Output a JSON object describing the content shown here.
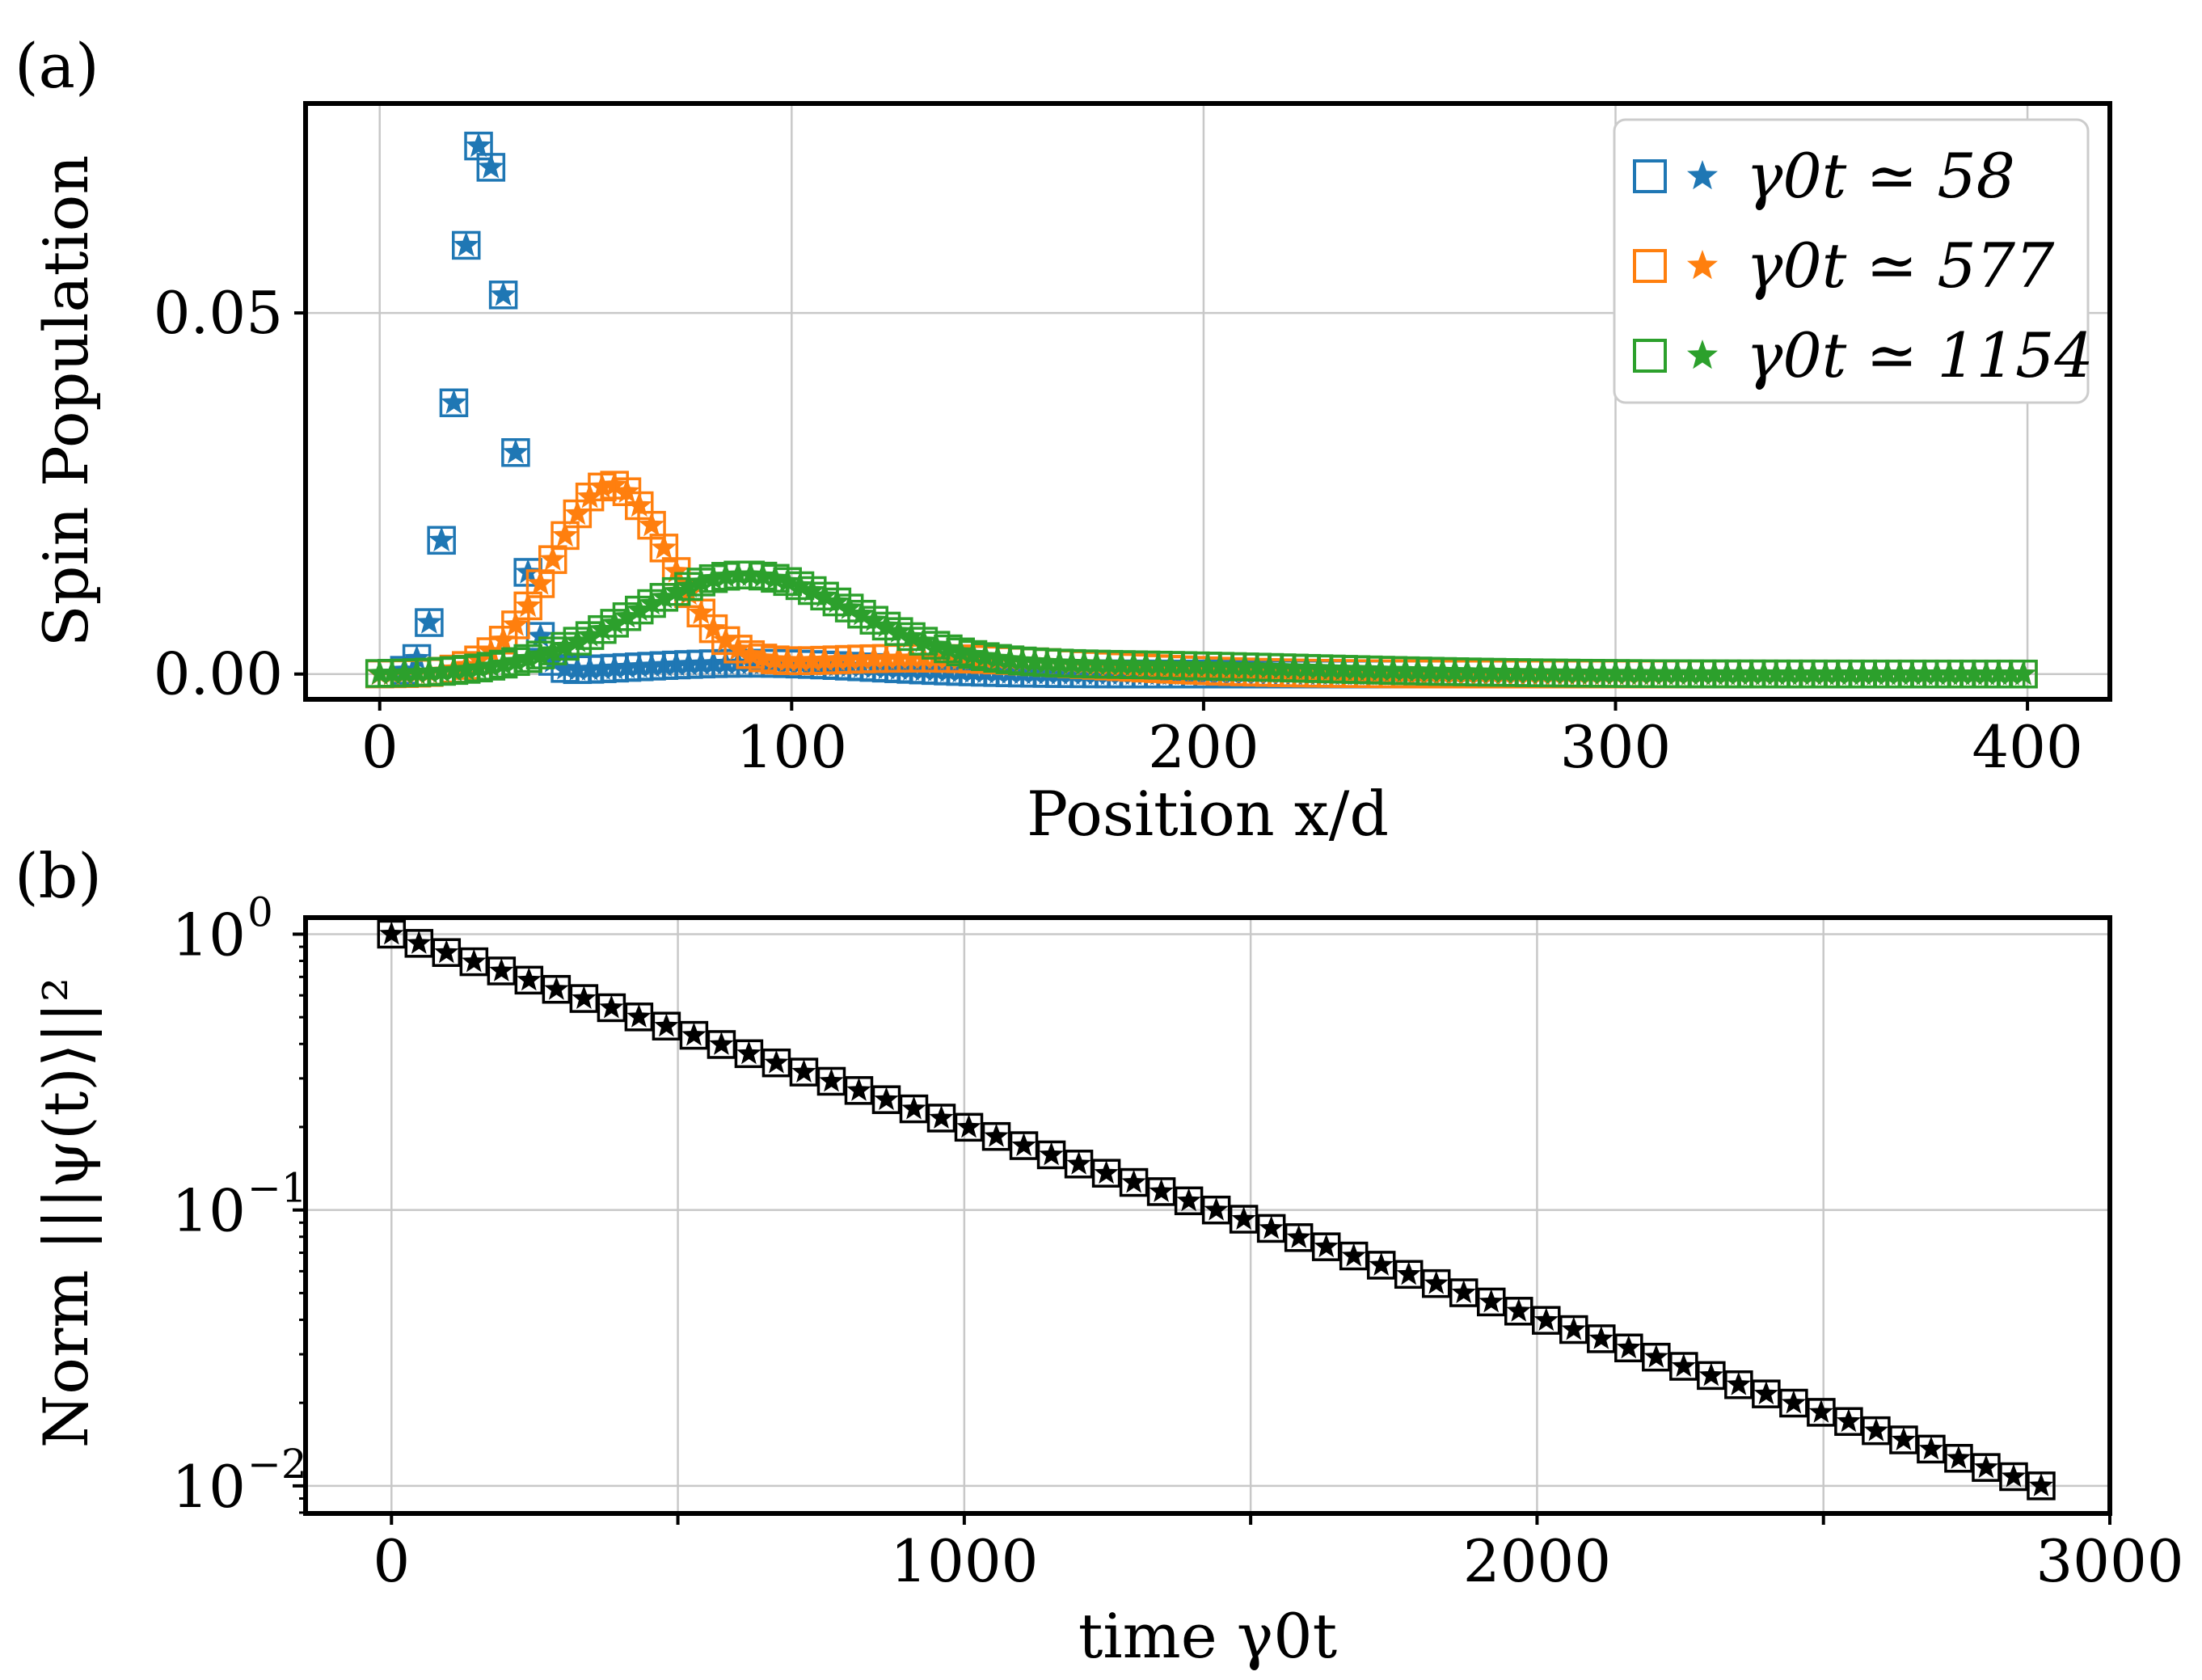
{
  "chart_data": [
    {
      "panel_label": "(a)",
      "type": "scatter",
      "xlabel": "Position x/d",
      "ylabel": "Spin Population",
      "xlim": [
        -18,
        420
      ],
      "ylim": [
        -0.0035,
        0.079
      ],
      "xticks": [
        0,
        100,
        200,
        300,
        400
      ],
      "yticks": [
        0.0,
        0.05
      ],
      "ytick_labels": [
        "0.00",
        "0.05"
      ],
      "grid": true,
      "legend_position": "top-right",
      "marker_styles": [
        "open square",
        "filled star"
      ],
      "series": [
        {
          "name": "γ0t ≃ 58",
          "color": "#1f77b4",
          "center": 25,
          "width": 6,
          "amplitude": 0.074,
          "sub_amplitude": 0.0015,
          "sub_center": 90,
          "sub_width": 30
        },
        {
          "name": "γ0t ≃ 577",
          "color": "#ff7f0e",
          "center": 56,
          "width": 14,
          "amplitude": 0.0258,
          "sub_amplitude": 0.0022,
          "sub_center": 130,
          "sub_width": 40
        },
        {
          "name": "γ0t ≃ 1154",
          "color": "#2ca02c",
          "center": 88,
          "width": 27,
          "amplitude": 0.0133,
          "sub_amplitude": 0.0013,
          "sub_center": 170,
          "sub_width": 55
        }
      ],
      "x_range": [
        0,
        400
      ],
      "x_step": 3
    },
    {
      "panel_label": "(b)",
      "type": "scatter",
      "xlabel": "time γ0t",
      "ylabel": "Norm |||ψ(t)⟩||²",
      "xlim": [
        -150,
        3000
      ],
      "ylim_log10": [
        -2.1,
        0.06
      ],
      "xticks": [
        0,
        1000,
        2000,
        3000
      ],
      "yticks_log10": [
        0,
        -1,
        -2
      ],
      "ytick_labels": [
        "10",
        "10",
        "10"
      ],
      "ytick_exponents": [
        "0",
        "−1",
        "−2"
      ],
      "grid": true,
      "log_y": true,
      "color": "#000000",
      "marker_styles": [
        "open square",
        "filled star"
      ],
      "x_start": 0,
      "x_end": 2880,
      "x_step": 48,
      "y_start": 1.0,
      "y_end": 0.01
    }
  ]
}
